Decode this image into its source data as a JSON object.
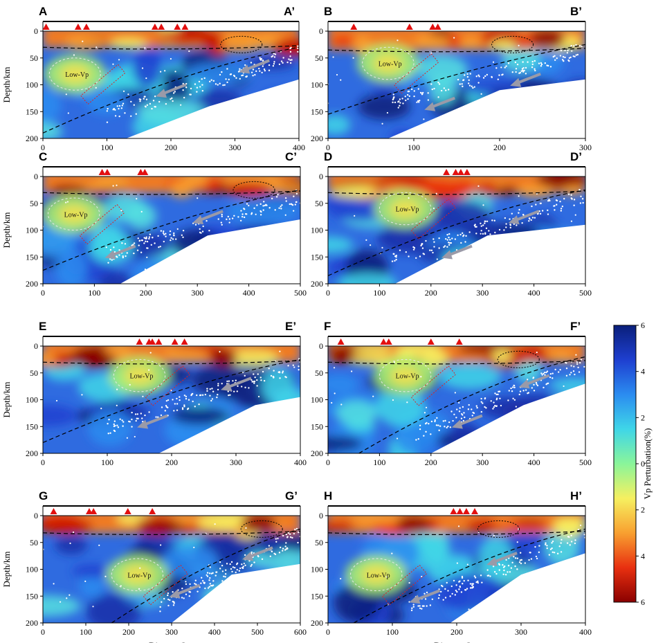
{
  "chart_data": {
    "type": "heatmap",
    "ylabel": "Depth/km",
    "xlabel": "Distance/km",
    "colorbar": {
      "label": "Vp Perturbation(%)",
      "ticks": [
        "6",
        "4",
        "2",
        "0",
        "2",
        "4",
        "6"
      ],
      "colors": [
        "#0a1f7a",
        "#1e3fd0",
        "#2b8cf0",
        "#3fd6e8",
        "#8af59a",
        "#f6f060",
        "#f8a030",
        "#e83010",
        "#8a0000"
      ]
    },
    "low_vp_label": "Low-Vp",
    "panels": [
      {
        "start": "A",
        "end": "A’",
        "xmax": 400,
        "xticks": [
          "0",
          "100",
          "200",
          "300",
          "400"
        ],
        "yticks": [
          "0",
          "50",
          "100",
          "150",
          "200"
        ],
        "volcanoes": [
          5,
          55,
          68,
          175,
          185,
          210,
          222
        ],
        "moho_depth": 30,
        "slab_start": [
          0,
          190
        ],
        "slab_end": [
          400,
          30
        ],
        "lowvp": [
          50,
          80
        ],
        "arrows": [
          [
            330,
            65
          ],
          [
            200,
            110
          ]
        ],
        "mask_bottom": [
          [
            0,
            200
          ],
          [
            130,
            200
          ],
          [
            260,
            140
          ],
          [
            400,
            90
          ]
        ],
        "ellipse": [
          310,
          25
        ],
        "show_ylabel": true,
        "show_xlabel": false
      },
      {
        "start": "B",
        "end": "B’",
        "xmax": 300,
        "xticks": [
          "0",
          "100",
          "200",
          "300"
        ],
        "yticks": [
          "0",
          "50",
          "100",
          "150",
          "200"
        ],
        "volcanoes": [
          30,
          95,
          122,
          128
        ],
        "moho_depth": 35,
        "slab_start": [
          0,
          155
        ],
        "slab_end": [
          300,
          25
        ],
        "lowvp": [
          70,
          60
        ],
        "arrows": [
          [
            230,
            90
          ],
          [
            130,
            135
          ]
        ],
        "mask_bottom": [
          [
            0,
            200
          ],
          [
            70,
            200
          ],
          [
            200,
            110
          ],
          [
            300,
            90
          ]
        ],
        "ellipse": [
          215,
          25
        ],
        "show_ylabel": false,
        "show_xlabel": false
      },
      {
        "start": "C",
        "end": "C’",
        "xmax": 500,
        "xticks": [
          "0",
          "100",
          "200",
          "300",
          "400",
          "500"
        ],
        "yticks": [
          "0",
          "50",
          "100",
          "150",
          "200"
        ],
        "volcanoes": [
          115,
          125,
          190,
          198
        ],
        "moho_depth": 30,
        "slab_start": [
          0,
          175
        ],
        "slab_end": [
          500,
          25
        ],
        "lowvp": [
          60,
          70
        ],
        "arrows": [
          [
            320,
            75
          ],
          [
            150,
            140
          ]
        ],
        "mask_bottom": [
          [
            0,
            200
          ],
          [
            150,
            200
          ],
          [
            320,
            110
          ],
          [
            500,
            80
          ]
        ],
        "ellipse": [
          410,
          25
        ],
        "show_ylabel": true,
        "show_xlabel": false
      },
      {
        "start": "D",
        "end": "D’",
        "xmax": 500,
        "xticks": [
          "0",
          "100",
          "200",
          "300",
          "400",
          "500"
        ],
        "yticks": [
          "0",
          "50",
          "100",
          "150",
          "200"
        ],
        "volcanoes": [
          230,
          248,
          258,
          270
        ],
        "moho_depth": 30,
        "slab_start": [
          0,
          185
        ],
        "slab_end": [
          500,
          25
        ],
        "lowvp": [
          150,
          60
        ],
        "arrows": [
          [
            380,
            75
          ],
          [
            250,
            140
          ]
        ],
        "mask_bottom": [
          [
            0,
            200
          ],
          [
            130,
            200
          ],
          [
            310,
            110
          ],
          [
            500,
            90
          ]
        ],
        "ellipse": [
          0,
          0
        ],
        "show_ylabel": false,
        "show_xlabel": false
      },
      {
        "start": "E",
        "end": "E’",
        "xmax": 400,
        "xticks": [
          "0",
          "100",
          "200",
          "300",
          "400"
        ],
        "yticks": [
          "0",
          "50",
          "100",
          "150",
          "200"
        ],
        "volcanoes": [
          150,
          165,
          170,
          180,
          205,
          220
        ],
        "moho_depth": 30,
        "slab_start": [
          0,
          180
        ],
        "slab_end": [
          400,
          25
        ],
        "lowvp": [
          150,
          55
        ],
        "arrows": [
          [
            300,
            70
          ],
          [
            170,
            140
          ]
        ],
        "mask_bottom": [
          [
            0,
            200
          ],
          [
            180,
            200
          ],
          [
            330,
            110
          ],
          [
            400,
            95
          ]
        ],
        "ellipse": [
          0,
          0
        ],
        "show_ylabel": true,
        "show_xlabel": false
      },
      {
        "start": "F",
        "end": "F’",
        "xmax": 500,
        "xticks": [
          "0",
          "100",
          "200",
          "300",
          "400",
          "500"
        ],
        "yticks": [
          "0",
          "50",
          "100",
          "150",
          "200"
        ],
        "volcanoes": [
          25,
          108,
          118,
          200,
          255
        ],
        "moho_depth": 30,
        "slab_start": [
          60,
          200
        ],
        "slab_end": [
          500,
          20
        ],
        "lowvp": [
          150,
          55
        ],
        "arrows": [
          [
            400,
            65
          ],
          [
            270,
            140
          ]
        ],
        "mask_bottom": [
          [
            0,
            200
          ],
          [
            200,
            200
          ],
          [
            380,
            110
          ],
          [
            500,
            70
          ]
        ],
        "ellipse": [
          370,
          25
        ],
        "show_ylabel": false,
        "show_xlabel": false
      },
      {
        "start": "G",
        "end": "G’",
        "xmax": 600,
        "xticks": [
          "0",
          "100",
          "200",
          "300",
          "400",
          "500",
          "600"
        ],
        "yticks": [
          "0",
          "50",
          "100",
          "150",
          "200"
        ],
        "volcanoes": [
          25,
          108,
          118,
          198,
          255
        ],
        "moho_depth": 32,
        "slab_start": [
          160,
          200
        ],
        "slab_end": [
          600,
          25
        ],
        "lowvp": [
          220,
          110
        ],
        "arrows": [
          [
            500,
            70
          ],
          [
            330,
            140
          ]
        ],
        "mask_bottom": [
          [
            0,
            200
          ],
          [
            300,
            200
          ],
          [
            440,
            110
          ],
          [
            600,
            90
          ]
        ],
        "ellipse": [
          510,
          25
        ],
        "show_ylabel": true,
        "show_xlabel": true
      },
      {
        "start": "H",
        "end": "H’",
        "xmax": 400,
        "xticks": [
          "0",
          "100",
          "200",
          "300",
          "400"
        ],
        "yticks": [
          "0",
          "50",
          "100",
          "150",
          "200"
        ],
        "volcanoes": [
          195,
          205,
          215,
          228
        ],
        "moho_depth": 32,
        "slab_start": [
          40,
          200
        ],
        "slab_end": [
          400,
          25
        ],
        "lowvp": [
          75,
          110
        ],
        "arrows": [
          [
            270,
            80
          ],
          [
            150,
            150
          ]
        ],
        "mask_bottom": [
          [
            0,
            200
          ],
          [
            190,
            200
          ],
          [
            300,
            110
          ],
          [
            400,
            70
          ]
        ],
        "ellipse": [
          265,
          25
        ],
        "show_ylabel": false,
        "show_xlabel": true
      }
    ]
  }
}
